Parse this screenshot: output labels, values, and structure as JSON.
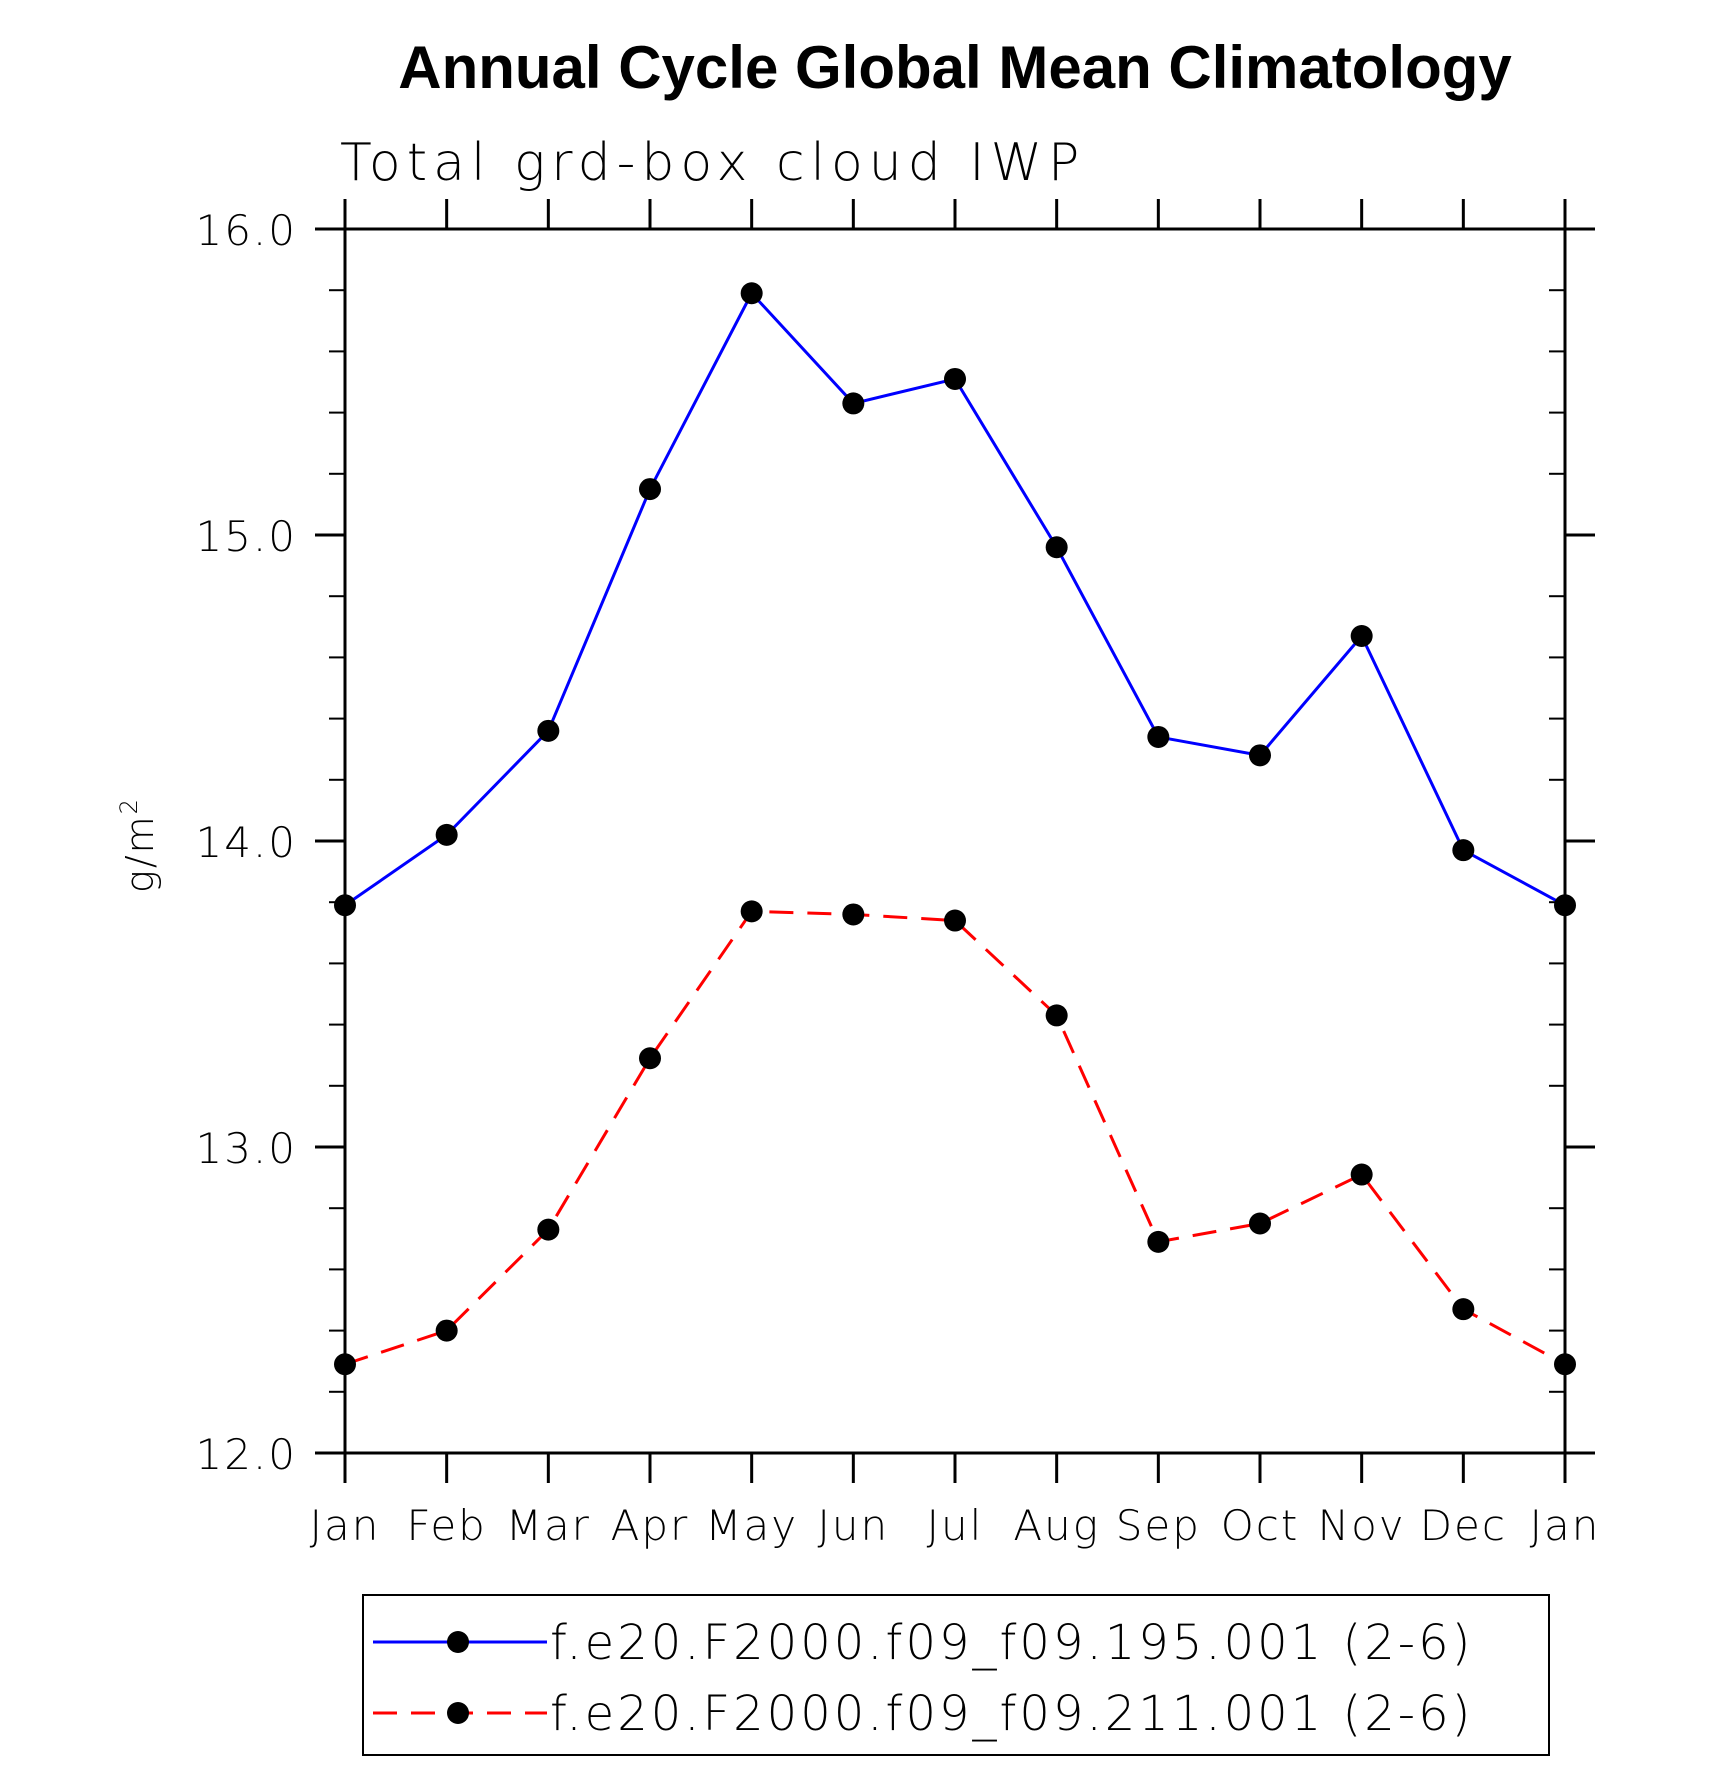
{
  "chart_data": {
    "type": "line",
    "title": "Annual Cycle Global Mean Climatology",
    "subtitle": "Total grd-box cloud IWP",
    "ylabel": "g/m",
    "ylabel_superscript": "2",
    "xlabel": "",
    "ylim": [
      12.0,
      16.0
    ],
    "yticks": [
      "12.0",
      "13.0",
      "14.0",
      "15.0",
      "16.0"
    ],
    "y_minor_step": 0.2,
    "categories": [
      "Jan",
      "Feb",
      "Mar",
      "Apr",
      "May",
      "Jun",
      "Jul",
      "Aug",
      "Sep",
      "Oct",
      "Nov",
      "Dec",
      "Jan"
    ],
    "series": [
      {
        "name": "f.e20.F2000.f09_f09.195.001 (2-6)",
        "color": "#0000ff",
        "style": "solid",
        "values": [
          13.79,
          14.02,
          14.36,
          15.15,
          15.79,
          15.43,
          15.51,
          14.96,
          14.34,
          14.28,
          14.67,
          13.97,
          13.79
        ]
      },
      {
        "name": "f.e20.F2000.f09_f09.211.001 (2-6)",
        "color": "#ff0000",
        "style": "dashed",
        "values": [
          12.29,
          12.4,
          12.73,
          13.29,
          13.77,
          13.76,
          13.74,
          13.43,
          12.69,
          12.75,
          12.91,
          12.47,
          12.29
        ]
      }
    ],
    "marker_color": "#000000",
    "legend_position": "bottom"
  }
}
